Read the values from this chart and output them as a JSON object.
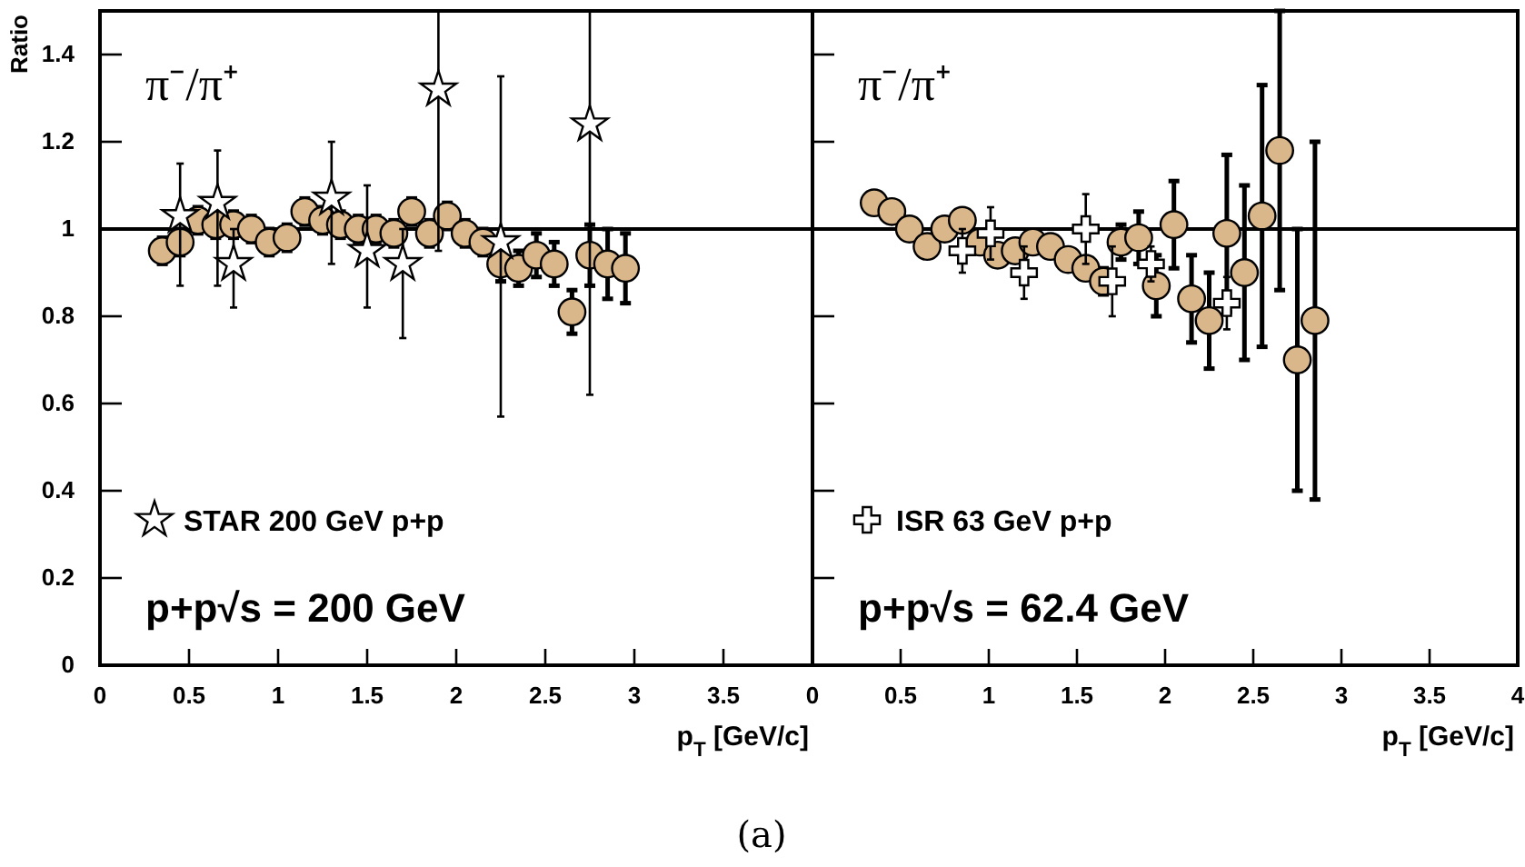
{
  "chart_data": [
    {
      "type": "scatter",
      "xlabel": "p$_{T}$ [GeV/c]",
      "ylabel": "Ratio",
      "xlim": [
        0,
        4
      ],
      "ylim": [
        0,
        1.5
      ],
      "xticks": [
        0,
        0.5,
        1,
        1.5,
        2,
        2.5,
        3,
        3.5,
        {
          "value": 4,
          "label": null
        }
      ],
      "yticks": [
        0,
        0.2,
        0.4,
        0.6,
        0.8,
        1,
        1.2,
        1.4
      ],
      "legend": "bottom left",
      "grid": false,
      "ref_lines": [
        {
          "axis": "y",
          "value": 1,
          "label": null
        }
      ],
      "annotations": [
        "π⁻/π⁺",
        "p+p√s = 200 GeV",
        "(a)"
      ],
      "series": [
        {
          "name": "STAR 200 GeV p+p",
          "marker": "star",
          "color": "#000000",
          "x": [
            0.45,
            0.66,
            0.75,
            1.3,
            1.5,
            1.7,
            1.9,
            2.25,
            2.75
          ],
          "values": [
            1.03,
            1.06,
            0.92,
            1.07,
            0.95,
            0.92,
            1.32,
            0.97,
            1.24
          ],
          "errors": [
            [
              0.87,
              1.15
            ],
            [
              0.87,
              1.18
            ],
            [
              0.82,
              1.0
            ],
            [
              0.92,
              1.2
            ],
            [
              0.82,
              1.1
            ],
            [
              0.75,
              1.0
            ],
            [
              0.95,
              1.5
            ],
            [
              0.57,
              1.35
            ],
            [
              0.62,
              1.5
            ]
          ]
        },
        {
          "marker": "circle",
          "color": "#d9b78a",
          "x": [
            0.35,
            0.45,
            0.55,
            0.65,
            0.75,
            0.85,
            0.95,
            1.05,
            1.15,
            1.25,
            1.35,
            1.45,
            1.55,
            1.65,
            1.75,
            1.85,
            1.95,
            2.05,
            2.15,
            2.25,
            2.35,
            2.45,
            2.55,
            2.65,
            2.75,
            2.85,
            2.95
          ],
          "values": [
            0.95,
            0.97,
            1.02,
            1.01,
            1.01,
            1.0,
            0.97,
            0.98,
            1.04,
            1.02,
            1.01,
            1.0,
            1.0,
            0.99,
            1.04,
            0.99,
            1.03,
            0.99,
            0.97,
            0.92,
            0.91,
            0.94,
            0.92,
            0.81,
            0.94,
            0.92,
            0.91
          ],
          "errors": [
            0.03,
            0.03,
            0.03,
            0.03,
            0.03,
            0.03,
            0.03,
            0.03,
            0.03,
            0.03,
            0.03,
            0.03,
            0.03,
            0.03,
            0.03,
            0.03,
            0.03,
            0.03,
            0.03,
            0.04,
            0.04,
            0.05,
            0.05,
            0.05,
            0.07,
            0.08,
            0.08
          ]
        }
      ]
    },
    {
      "type": "scatter",
      "xlabel": "p$_{T}$ [GeV/c]",
      "xlim": [
        0,
        4
      ],
      "ylim": [
        0,
        1.5
      ],
      "xticks": [
        0,
        0.5,
        1,
        1.5,
        2,
        2.5,
        3,
        3.5,
        4
      ],
      "yticks": [
        0,
        0.2,
        0.4,
        0.6,
        0.8,
        1,
        1.2,
        1.4
      ],
      "tick_labels": "x",
      "legend": "bottom left",
      "grid": false,
      "ref_lines": [
        {
          "axis": "y",
          "value": 1,
          "label": null
        }
      ],
      "annotations": [
        "π⁻/π⁺",
        "p+p√s = 62.4 GeV"
      ],
      "series": [
        {
          "name": "ISR 63 GeV p+p",
          "marker": "cross",
          "color": "#000000",
          "x": [
            0.85,
            1.01,
            1.2,
            1.55,
            1.7,
            1.92,
            2.35
          ],
          "values": [
            0.95,
            0.99,
            0.9,
            1.0,
            0.88,
            0.92,
            0.83
          ],
          "errors": [
            0.05,
            0.06,
            0.06,
            0.08,
            0.08,
            0.04,
            0.06
          ]
        },
        {
          "marker": "circle",
          "color": "#d9b78a",
          "x": [
            0.35,
            0.45,
            0.55,
            0.65,
            0.75,
            0.85,
            0.95,
            1.05,
            1.15,
            1.25,
            1.35,
            1.45,
            1.55,
            1.65,
            1.75,
            1.85,
            1.95,
            2.05,
            2.15,
            2.25,
            2.35,
            2.45,
            2.55,
            2.65,
            2.75,
            2.85
          ],
          "values": [
            1.06,
            1.04,
            1.0,
            0.96,
            1.0,
            1.02,
            0.97,
            0.94,
            0.95,
            0.97,
            0.96,
            0.93,
            0.91,
            0.88,
            0.97,
            0.98,
            0.87,
            1.01,
            0.84,
            0.79,
            0.99,
            0.9,
            1.03,
            1.18,
            0.7,
            0.79
          ],
          "errors": [
            0.02,
            0.02,
            0.02,
            0.02,
            0.02,
            0.02,
            0.02,
            0.02,
            0.02,
            0.02,
            0.02,
            0.02,
            0.02,
            0.03,
            0.04,
            0.06,
            0.07,
            0.1,
            0.1,
            0.11,
            0.18,
            0.2,
            0.3,
            0.32,
            0.3,
            0.41
          ]
        }
      ]
    }
  ]
}
